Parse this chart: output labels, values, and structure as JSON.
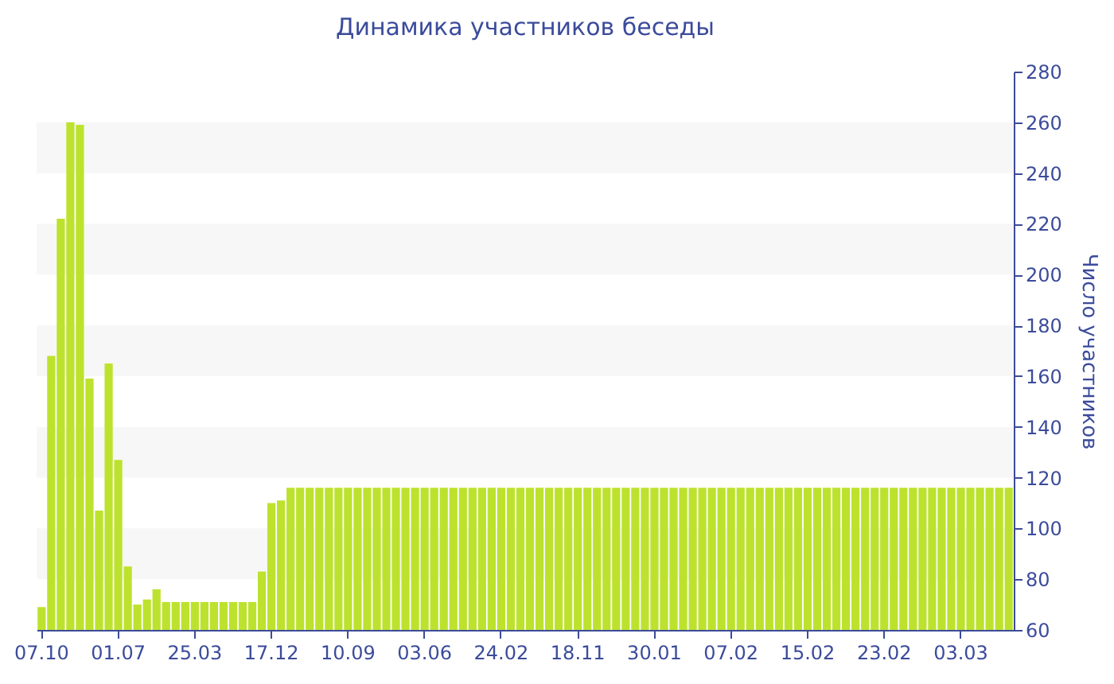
{
  "chart_data": {
    "type": "bar",
    "title": "Динамика участников беседы",
    "ylabel": "Число участников",
    "categories": [
      "07.10",
      null,
      null,
      null,
      null,
      null,
      null,
      null,
      "01.07",
      null,
      null,
      null,
      null,
      null,
      null,
      null,
      "25.03",
      null,
      null,
      null,
      null,
      null,
      null,
      null,
      "17.12",
      null,
      null,
      null,
      null,
      null,
      null,
      null,
      "10.09",
      null,
      null,
      null,
      null,
      null,
      null,
      null,
      "03.06",
      null,
      null,
      null,
      null,
      null,
      null,
      null,
      "24.02",
      null,
      null,
      null,
      null,
      null,
      null,
      null,
      "18.11",
      null,
      null,
      null,
      null,
      null,
      null,
      null,
      "30.01",
      null,
      null,
      null,
      null,
      null,
      null,
      null,
      "07.02",
      null,
      null,
      null,
      null,
      null,
      null,
      null,
      "15.02",
      null,
      null,
      null,
      null,
      null,
      null,
      null,
      "23.02",
      null,
      null,
      null,
      null,
      null,
      null,
      null,
      "03.03",
      null,
      null,
      null,
      null,
      null
    ],
    "values": [
      69,
      168,
      222,
      260,
      259,
      159,
      107,
      165,
      127,
      85,
      70,
      72,
      76,
      71,
      71,
      71,
      71,
      71,
      71,
      71,
      71,
      71,
      71,
      83,
      110,
      111,
      116,
      116,
      116,
      116,
      116,
      116,
      116,
      116,
      116,
      116,
      116,
      116,
      116,
      116,
      116,
      116,
      116,
      116,
      116,
      116,
      116,
      116,
      116,
      116,
      116,
      116,
      116,
      116,
      116,
      116,
      116,
      116,
      116,
      116,
      116,
      116,
      116,
      116,
      116,
      116,
      116,
      116,
      116,
      116,
      116,
      116,
      116,
      116,
      116,
      116,
      116,
      116,
      116,
      116,
      116,
      116,
      116,
      116,
      116,
      116,
      116,
      116,
      116,
      116,
      116,
      116,
      116,
      116,
      116,
      116,
      116,
      116,
      116,
      116,
      116,
      116
    ],
    "color": "#bde22e",
    "ylim": [
      60,
      280
    ],
    "yticks": [
      60,
      80,
      100,
      120,
      140,
      160,
      180,
      200,
      220,
      240,
      260,
      280
    ],
    "bands": [
      {
        "axis": "y",
        "from": 80,
        "to": 100,
        "color": "#f7f7f7"
      },
      {
        "axis": "y",
        "from": 120,
        "to": 140,
        "color": "#f7f7f7"
      },
      {
        "axis": "y",
        "from": 160,
        "to": 180,
        "color": "#f7f7f7"
      },
      {
        "axis": "y",
        "from": 200,
        "to": 220,
        "color": "#f7f7f7"
      },
      {
        "axis": "y",
        "from": 240,
        "to": 260,
        "color": "#f7f7f7"
      }
    ]
  }
}
